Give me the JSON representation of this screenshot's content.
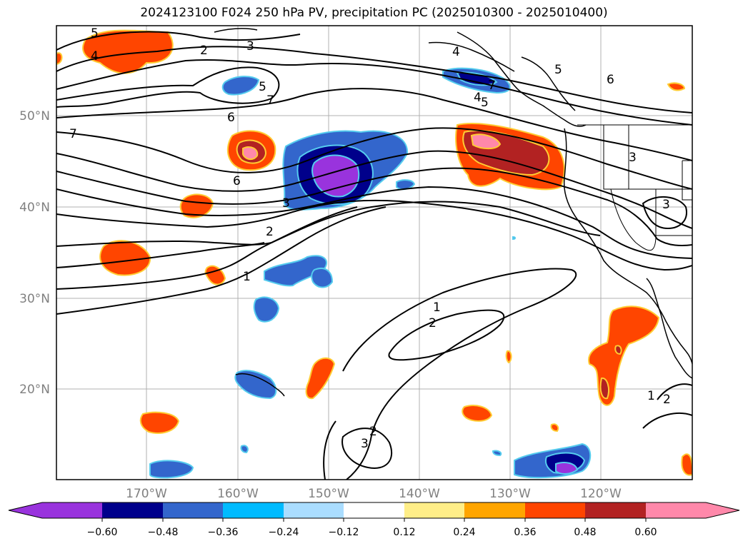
{
  "title": "2024123100 F024 250 hPa PV, precipitation PC (2025010300 - 2025010400)",
  "map": {
    "lon_labels": [
      "170°W",
      "160°W",
      "150°W",
      "140°W",
      "130°W",
      "120°W"
    ],
    "lat_labels": [
      "50°N",
      "40°N",
      "30°N",
      "20°N"
    ],
    "axis_label_color": "#808080",
    "contour_labels": [
      "5",
      "4",
      "2",
      "3",
      "5",
      "6",
      "6",
      "7",
      "6",
      "7",
      "3",
      "2",
      "1",
      "1",
      "2",
      "2",
      "3",
      "3",
      "3",
      "1",
      "2",
      "4",
      "5",
      "7",
      "4",
      "5"
    ]
  },
  "colorbar": {
    "tick_labels": [
      "−0.60",
      "−0.48",
      "−0.36",
      "−0.24",
      "−0.12",
      "0.12",
      "0.24",
      "0.36",
      "0.48",
      "0.60"
    ],
    "colors": [
      "#9933dd",
      "#00008b",
      "#3366cc",
      "#00bbff",
      "#aaddff",
      "#ffffff",
      "#ffee88",
      "#ffa500",
      "#ff4500",
      "#b22222",
      "#ff88aa"
    ]
  }
}
